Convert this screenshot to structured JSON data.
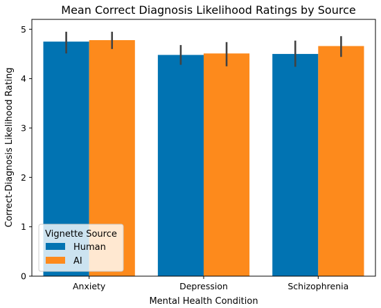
{
  "chart_data": {
    "type": "bar",
    "title": "Mean Correct Diagnosis Likelihood Ratings by Source",
    "xlabel": "Mental Health Condition",
    "ylabel": "Correct-Diagnosis Likelihood Rating",
    "categories": [
      "Anxiety",
      "Depression",
      "Schizophrenia"
    ],
    "ylim": [
      0,
      5.2
    ],
    "yticks": [
      "0",
      "1",
      "2",
      "3",
      "4",
      "5"
    ],
    "grid": false,
    "legend": {
      "title": "Vignette Source",
      "placement": "lower-left"
    },
    "series": [
      {
        "name": "Human",
        "color": "#0173b2",
        "values": [
          4.75,
          4.48,
          4.5
        ],
        "error_low": [
          4.51,
          4.28,
          4.24
        ],
        "error_high": [
          4.95,
          4.68,
          4.77
        ]
      },
      {
        "name": "AI",
        "color": "#fd8a1c",
        "values": [
          4.78,
          4.51,
          4.66
        ],
        "error_low": [
          4.6,
          4.25,
          4.44
        ],
        "error_high": [
          4.95,
          4.74,
          4.86
        ]
      }
    ],
    "error_bar_color": "#424242"
  }
}
